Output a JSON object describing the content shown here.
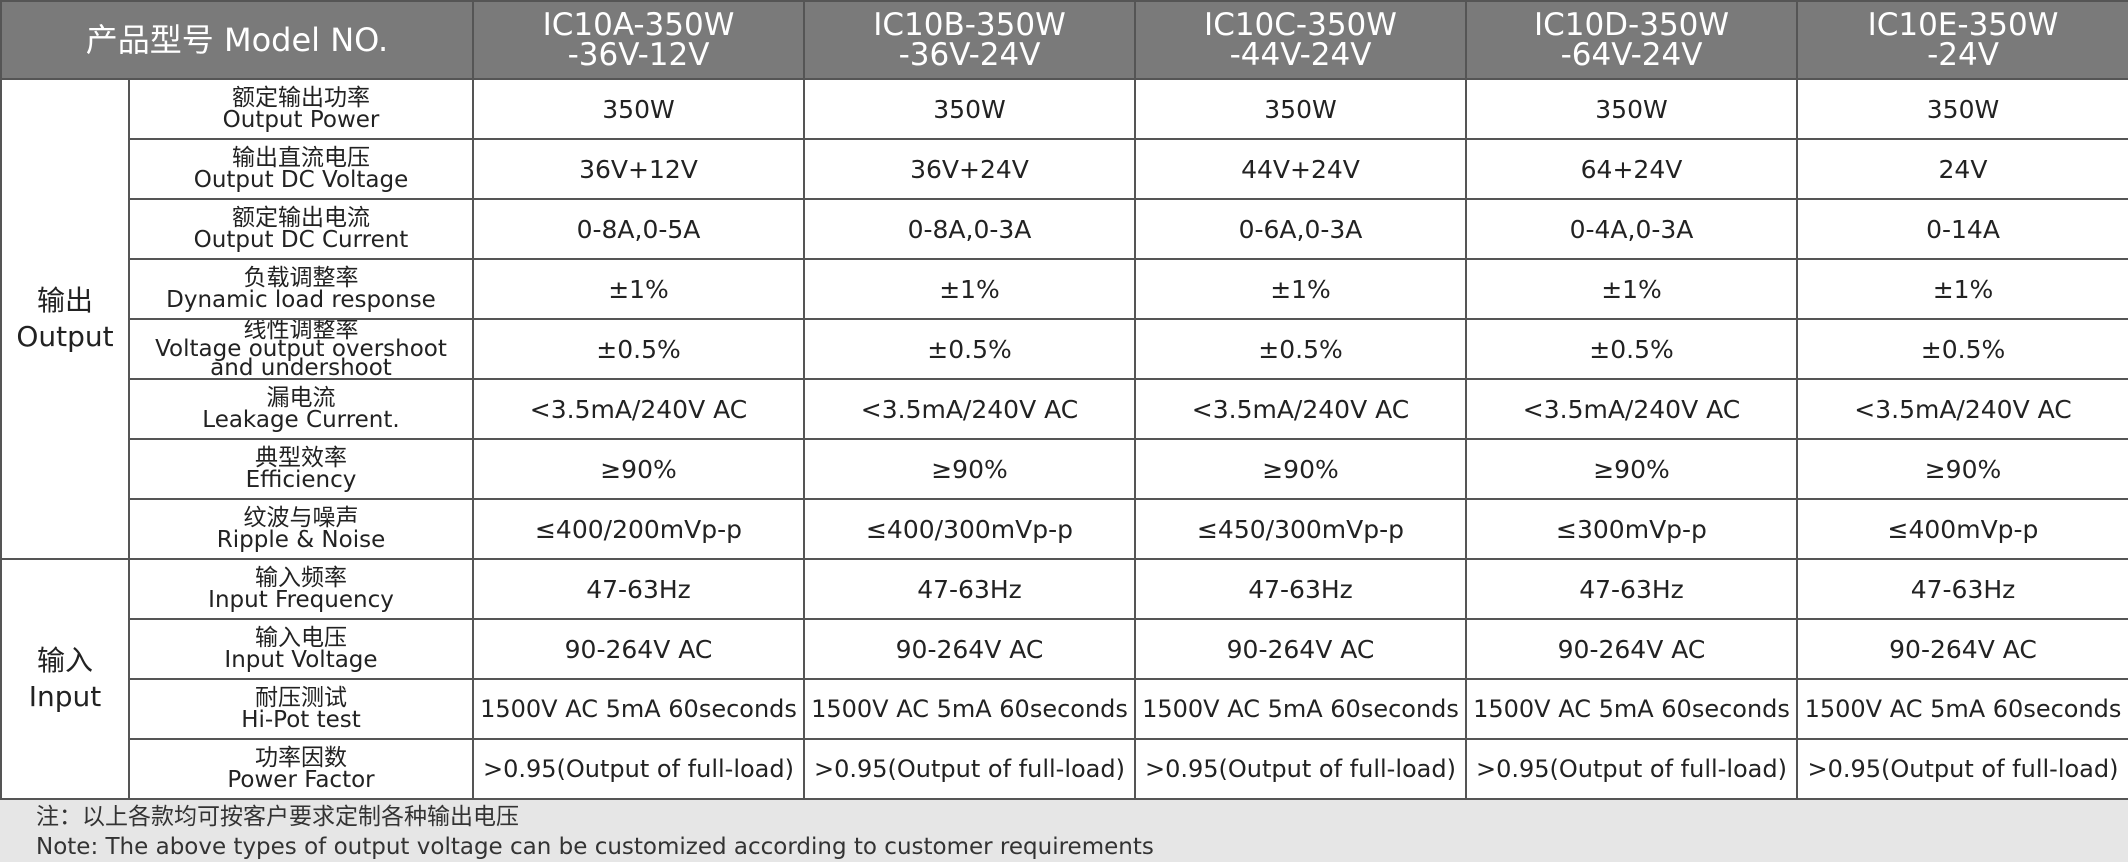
{
  "header": {
    "model_label": "产品型号 Model NO.",
    "models": [
      {
        "line1": "IC10A-350W",
        "line2": "-36V-12V"
      },
      {
        "line1": "IC10B-350W",
        "line2": "-36V-24V"
      },
      {
        "line1": "IC10C-350W",
        "line2": "-44V-24V"
      },
      {
        "line1": "IC10D-350W",
        "line2": "-64V-24V"
      },
      {
        "line1": "IC10E-350W",
        "line2": "-24V"
      }
    ]
  },
  "sections": {
    "output": {
      "zh": "输出",
      "en": "Output"
    },
    "input": {
      "zh": "输入",
      "en": "Input"
    }
  },
  "rows": [
    {
      "zh": "额定输出功率",
      "en": "Output Power",
      "values": [
        "350W",
        "350W",
        "350W",
        "350W",
        "350W"
      ]
    },
    {
      "zh": "输出直流电压",
      "en": "Output DC Voltage",
      "values": [
        "36V+12V",
        "36V+24V",
        "44V+24V",
        "64+24V",
        "24V"
      ]
    },
    {
      "zh": "额定输出电流",
      "en": "Output DC Current",
      "values": [
        "0-8A,0-5A",
        "0-8A,0-3A",
        "0-6A,0-3A",
        "0-4A,0-3A",
        "0-14A"
      ]
    },
    {
      "zh": "负载调整率",
      "en": "Dynamic load response",
      "values": [
        "±1%",
        "±1%",
        "±1%",
        "±1%",
        "±1%"
      ]
    },
    {
      "zh": "线性调整率",
      "en": "Voltage output overshoot",
      "en2": "and undershoot",
      "values": [
        "±0.5%",
        "±0.5%",
        "±0.5%",
        "±0.5%",
        "±0.5%"
      ]
    },
    {
      "zh": "漏电流",
      "en": "Leakage Current.",
      "values": [
        "<3.5mA/240V AC",
        "<3.5mA/240V AC",
        "<3.5mA/240V AC",
        "<3.5mA/240V AC",
        "<3.5mA/240V AC"
      ]
    },
    {
      "zh": "典型效率",
      "en": "Efficiency",
      "values": [
        "≥90%",
        "≥90%",
        "≥90%",
        "≥90%",
        "≥90%"
      ]
    },
    {
      "zh": "纹波与噪声",
      "en": "Ripple & Noise",
      "values": [
        "≤400/200mVp-p",
        "≤400/300mVp-p",
        "≤450/300mVp-p",
        "≤300mVp-p",
        "≤400mVp-p"
      ]
    },
    {
      "zh": "输入频率",
      "en": "Input Frequency",
      "values": [
        "47-63Hz",
        "47-63Hz",
        "47-63Hz",
        "47-63Hz",
        "47-63Hz"
      ]
    },
    {
      "zh": "输入电压",
      "en": "Input Voltage",
      "values": [
        "90-264V AC",
        "90-264V AC",
        "90-264V AC",
        "90-264V AC",
        "90-264V AC"
      ]
    },
    {
      "zh": "耐压测试",
      "en": "Hi-Pot test",
      "values": [
        "1500V AC 5mA 60seconds",
        "1500V AC 5mA 60seconds",
        "1500V AC 5mA 60seconds",
        "1500V AC 5mA 60seconds",
        "1500V AC 5mA 60seconds"
      ]
    },
    {
      "zh": "功率因数",
      "en": "Power Factor",
      "values": [
        ">0.95(Output of full-load)",
        ">0.95(Output of full-load)",
        ">0.95(Output of full-load)",
        ">0.95(Output of full-load)",
        ">0.95(Output of full-load)"
      ]
    }
  ],
  "note": {
    "zh": "注：以上各款均可按客户要求定制各种输出电压",
    "en": "Note: The above types of output voltage can be customized according to customer requirements"
  }
}
